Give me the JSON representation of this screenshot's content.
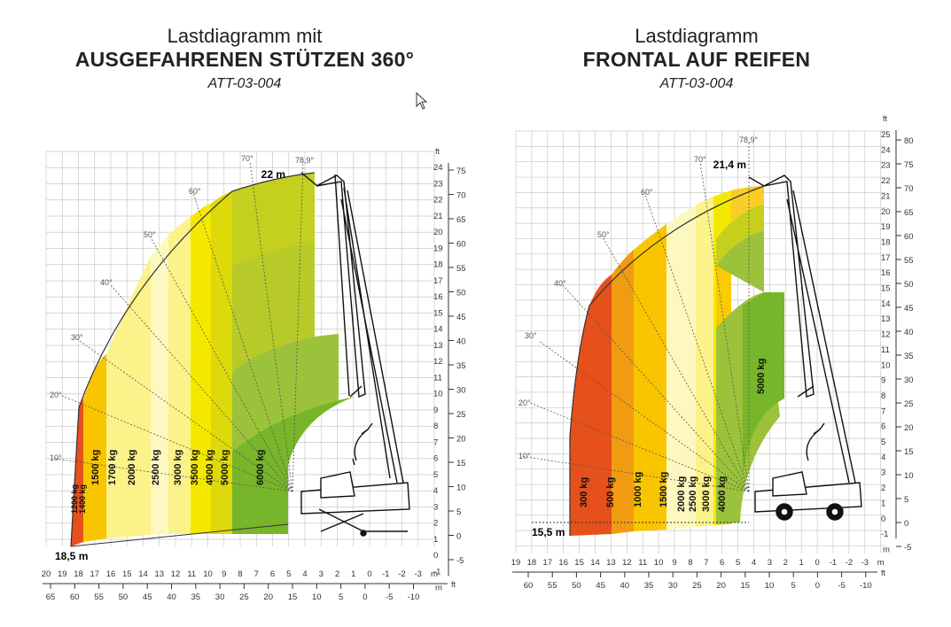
{
  "left": {
    "title_line1": "Lastdiagramm mit",
    "title_line2": "AUSGEFAHRENEN STÜTZEN 360°",
    "code": "ATT-03-004",
    "max_height_label": "22 m",
    "max_reach_label": "18,5 m",
    "angles": [
      "10°",
      "20°",
      "30°",
      "40°",
      "50°",
      "60°",
      "70°",
      "78,9°"
    ],
    "loads": [
      "1200 kg",
      "1400 kg",
      "1500 kg",
      "1700 kg",
      "2000 kg",
      "2500 kg",
      "3000 kg",
      "3500 kg",
      "4000 kg",
      "5000 kg",
      "6000 kg"
    ],
    "y_m_ticks": [
      "24",
      "23",
      "22",
      "21",
      "20",
      "19",
      "18",
      "17",
      "16",
      "15",
      "14",
      "13",
      "12",
      "11",
      "10",
      "9",
      "8",
      "7",
      "6",
      "5",
      "4",
      "3",
      "2",
      "1",
      "0",
      "-1"
    ],
    "y_ft_ticks": [
      "75",
      "70",
      "65",
      "60",
      "55",
      "50",
      "45",
      "40",
      "35",
      "30",
      "25",
      "20",
      "15",
      "10",
      "5",
      "0",
      "-5"
    ],
    "x_m_ticks": [
      "20",
      "19",
      "18",
      "17",
      "16",
      "15",
      "14",
      "13",
      "12",
      "11",
      "10",
      "9",
      "8",
      "7",
      "6",
      "5",
      "4",
      "3",
      "2",
      "1",
      "0",
      "-1",
      "-2",
      "-3"
    ],
    "x_ft_ticks": [
      "65",
      "60",
      "55",
      "50",
      "45",
      "40",
      "35",
      "30",
      "25",
      "20",
      "15",
      "10",
      "5",
      "0",
      "-5",
      "-10"
    ],
    "unit_m": "m",
    "unit_ft": "ft"
  },
  "right": {
    "title_line1": "Lastdiagramm",
    "title_line2": "FRONTAL AUF REIFEN",
    "code": "ATT-03-004",
    "max_height_label": "21,4 m",
    "max_reach_label": "15,5 m",
    "angles": [
      "10°",
      "20°",
      "30°",
      "40°",
      "50°",
      "60°",
      "70°",
      "78,9°"
    ],
    "loads": [
      "300 kg",
      "500 kg",
      "1000 kg",
      "1500 kg",
      "2000 kg",
      "2500 kg",
      "3000 kg",
      "4000 kg",
      "5000 kg"
    ],
    "y_m_ticks": [
      "25",
      "24",
      "23",
      "22",
      "21",
      "20",
      "19",
      "18",
      "17",
      "16",
      "15",
      "14",
      "13",
      "12",
      "11",
      "10",
      "9",
      "8",
      "7",
      "6",
      "5",
      "4",
      "3",
      "2",
      "1",
      "0",
      "-1"
    ],
    "y_ft_ticks": [
      "80",
      "75",
      "70",
      "65",
      "60",
      "55",
      "50",
      "45",
      "40",
      "35",
      "30",
      "25",
      "20",
      "15",
      "10",
      "5",
      "0",
      "-5"
    ],
    "x_m_ticks": [
      "19",
      "18",
      "17",
      "16",
      "15",
      "14",
      "13",
      "12",
      "11",
      "10",
      "9",
      "8",
      "7",
      "6",
      "5",
      "4",
      "3",
      "2",
      "1",
      "0",
      "-1",
      "-2",
      "-3"
    ],
    "x_ft_ticks": [
      "60",
      "55",
      "50",
      "45",
      "40",
      "35",
      "30",
      "25",
      "20",
      "15",
      "10",
      "5",
      "0",
      "-5",
      "-10"
    ],
    "unit_m": "m",
    "unit_ft": "ft"
  },
  "colors": {
    "grid": "#c8c8c8",
    "green_dark": "#77b52a",
    "green": "#9bc23a",
    "yellow_green": "#c5cf1e",
    "yellow": "#f5e800",
    "light_yellow": "#fbf28a",
    "pale_yellow": "#fdf8c0",
    "orange_yellow": "#f9c500",
    "orange": "#f19b12",
    "red_orange": "#e6501b"
  }
}
